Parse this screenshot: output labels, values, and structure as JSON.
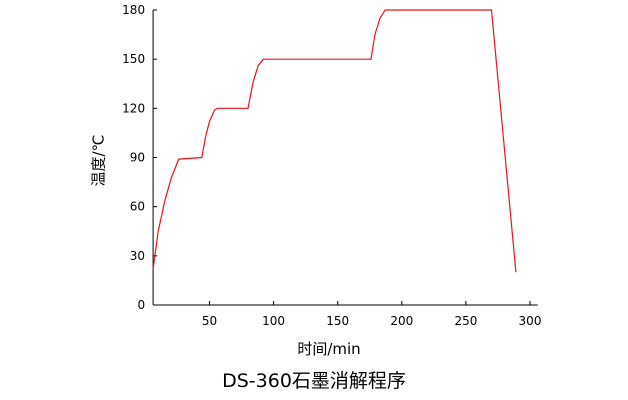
{
  "chart_data": {
    "type": "line",
    "title": "DS-360石墨消解程序",
    "xlabel": "时间/min",
    "ylabel": "温度/℃",
    "xlim": [
      6,
      306
    ],
    "ylim": [
      0,
      180
    ],
    "xticks": [
      50,
      100,
      150,
      200,
      250,
      300
    ],
    "yticks": [
      0,
      30,
      60,
      90,
      120,
      150,
      180
    ],
    "grid": false,
    "color": "#e8141c",
    "series": [
      {
        "x": [
          6,
          10,
          15,
          20,
          26,
          44,
          47,
          50,
          54,
          56,
          80,
          84,
          88,
          92,
          176,
          179,
          183,
          187,
          270,
          289
        ],
        "y": [
          22,
          45,
          63,
          77,
          89,
          90,
          103,
          112,
          119,
          120,
          120,
          136,
          146,
          150,
          150,
          165,
          175,
          180,
          180,
          20
        ]
      }
    ]
  }
}
